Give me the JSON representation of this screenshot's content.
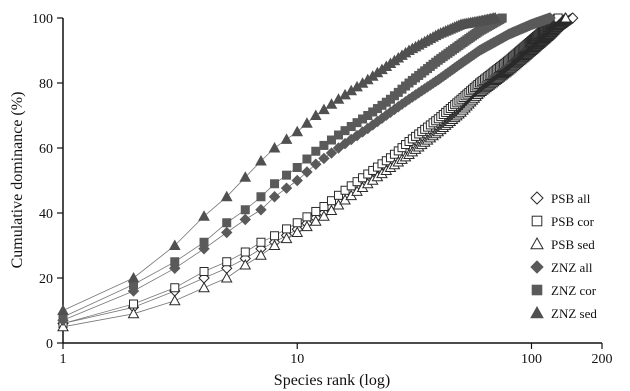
{
  "chart_data": {
    "type": "scatter",
    "title": "",
    "xlabel": "Species rank (log)",
    "ylabel": "Cumulative dominance (%)",
    "x_scale": "log",
    "xlim": [
      1,
      200
    ],
    "ylim": [
      0,
      100
    ],
    "x_ticks": [
      1,
      10,
      100,
      200
    ],
    "x_tick_labels": [
      "1",
      "10",
      "100",
      "200"
    ],
    "y_ticks": [
      0,
      20,
      40,
      60,
      80,
      100
    ],
    "y_tick_labels": [
      "0",
      "20",
      "40",
      "60",
      "80",
      "100"
    ],
    "grid": false,
    "legend_position": "right",
    "series": [
      {
        "name": "PSB all",
        "marker": "diamond-open",
        "color": "#3a3a3a",
        "total": 150,
        "x": [
          1,
          2,
          3,
          4,
          5,
          6,
          7,
          8,
          10,
          13,
          16,
          20,
          25,
          30,
          40,
          50,
          60,
          80,
          100,
          120,
          150
        ],
        "y": [
          6,
          11,
          16,
          20,
          23,
          26,
          29,
          31,
          35,
          40,
          45,
          50,
          55,
          59,
          66,
          72,
          77,
          84,
          90,
          95,
          100
        ]
      },
      {
        "name": "PSB cor",
        "marker": "square-open",
        "color": "#3a3a3a",
        "total": 130,
        "x": [
          1,
          2,
          3,
          4,
          5,
          6,
          7,
          8,
          10,
          13,
          16,
          20,
          25,
          30,
          40,
          50,
          60,
          80,
          100,
          130
        ],
        "y": [
          6,
          12,
          17,
          22,
          25,
          28,
          31,
          33,
          37,
          42,
          47,
          52,
          57,
          62,
          69,
          75,
          80,
          87,
          93,
          100
        ]
      },
      {
        "name": "PSB sed",
        "marker": "triangle-open",
        "color": "#3a3a3a",
        "total": 140,
        "x": [
          1,
          2,
          3,
          4,
          5,
          6,
          7,
          8,
          10,
          13,
          16,
          20,
          25,
          30,
          40,
          50,
          60,
          80,
          100,
          120,
          140
        ],
        "y": [
          5,
          9,
          13,
          17,
          20,
          24,
          27,
          30,
          34,
          39,
          44,
          49,
          54,
          58,
          65,
          71,
          77,
          84,
          90,
          95,
          100
        ]
      },
      {
        "name": "ZNZ all",
        "marker": "diamond-filled",
        "color": "#5a5a5a",
        "total": 120,
        "x": [
          1,
          2,
          3,
          4,
          5,
          6,
          7,
          8,
          10,
          12,
          15,
          20,
          25,
          30,
          40,
          50,
          60,
          80,
          100,
          120
        ],
        "y": [
          7,
          16,
          23,
          29,
          34,
          38,
          41,
          45,
          50,
          55,
          60,
          66,
          71,
          75,
          81,
          86,
          90,
          95,
          98,
          100
        ]
      },
      {
        "name": "ZNZ cor",
        "marker": "square-filled",
        "color": "#5a5a5a",
        "total": 75,
        "x": [
          1,
          2,
          3,
          4,
          5,
          6,
          7,
          8,
          10,
          12,
          15,
          20,
          25,
          30,
          40,
          50,
          60,
          75
        ],
        "y": [
          8,
          18,
          25,
          31,
          37,
          41,
          45,
          49,
          54,
          59,
          64,
          70,
          75,
          80,
          87,
          92,
          96,
          100
        ]
      },
      {
        "name": "ZNZ sed",
        "marker": "triangle-filled",
        "color": "#505050",
        "total": 70,
        "x": [
          1,
          2,
          3,
          4,
          5,
          6,
          7,
          8,
          10,
          12,
          15,
          20,
          25,
          30,
          40,
          50,
          60,
          70
        ],
        "y": [
          10,
          20,
          30,
          39,
          45,
          51,
          56,
          60,
          65,
          70,
          75,
          81,
          86,
          90,
          95,
          98,
          99,
          100
        ]
      }
    ]
  }
}
